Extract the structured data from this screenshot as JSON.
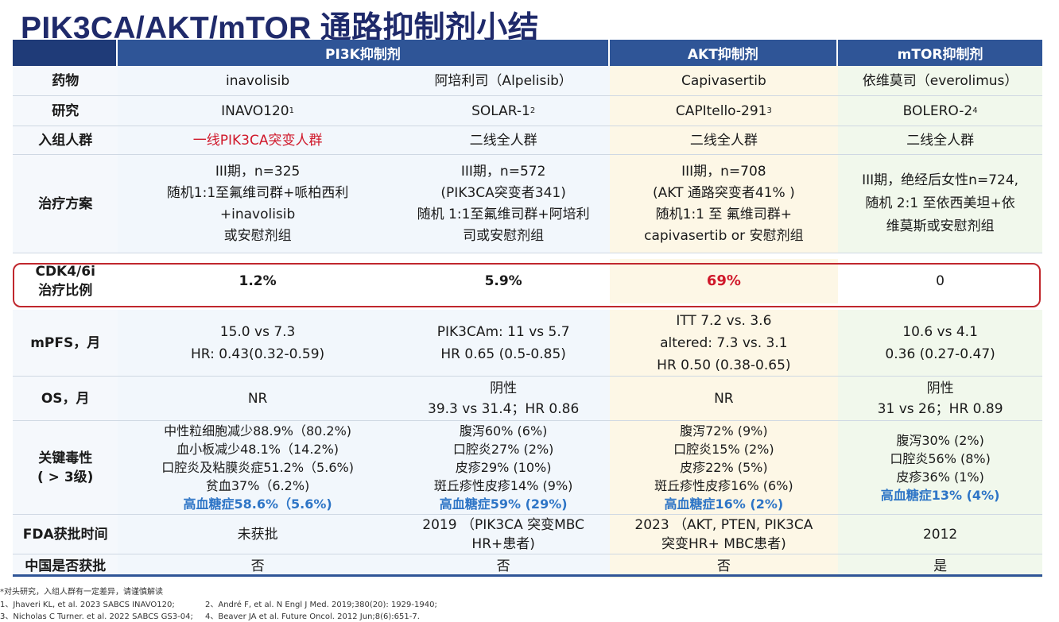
{
  "title": "PIK3CA/AKT/mTOR 通路抑制剂小结",
  "headers": {
    "label": "",
    "pi3k": "PI3K抑制剂",
    "akt": "AKT抑制剂",
    "mtor": "mTOR抑制剂"
  },
  "rows": {
    "drug": {
      "label": "药物",
      "v": [
        "inavolisib",
        "阿培利司（Alpelisib）",
        "Capivasertib",
        "依维莫司（everolimus）"
      ]
    },
    "study": {
      "label": "研究",
      "v": [
        "INAVO120",
        "SOLAR-1",
        "CAPItello-291",
        "BOLERO-2"
      ],
      "sup": [
        "1",
        "2",
        "3",
        "4"
      ]
    },
    "population": {
      "label": "入组人群",
      "v": [
        "一线PIK3CA突变人群",
        "二线全人群",
        "二线全人群",
        "二线全人群"
      ]
    },
    "regimen": {
      "label": "治疗方案",
      "v": [
        [
          "III期，n=325",
          "随机1:1至氟维司群+哌柏西利",
          "+inavolisib",
          "或安慰剂组"
        ],
        [
          "III期，n=572",
          "(PIK3CA突变者341)",
          "随机 1:1至氟维司群+阿培利",
          "司或安慰剂组"
        ],
        [
          "III期，n=708",
          "(AKT 通路突变者41% )",
          "随机1:1 至 氟维司群+",
          "capivasertib or 安慰剂组"
        ],
        [
          "III期，绝经后女性n=724,",
          "随机 2:1 至依西美坦+依",
          "维莫斯或安慰剂组"
        ]
      ]
    },
    "cdk": {
      "label1": "CDK4/6i",
      "label2": "治疗比例",
      "v": [
        "1.2%",
        "5.9%",
        "69%",
        "0"
      ]
    },
    "mpfs": {
      "label": "mPFS，月",
      "v": [
        [
          "15.0 vs 7.3",
          "HR: 0.43(0.32-0.59)"
        ],
        [
          "PIK3CAm: 11 vs 5.7",
          "HR 0.65 (0.5-0.85)"
        ],
        [
          "ITT 7.2 vs. 3.6",
          "altered: 7.3 vs. 3.1",
          "HR 0.50 (0.38-0.65)"
        ],
        [
          "10.6 vs 4.1",
          "0.36 (0.27-0.47)"
        ]
      ]
    },
    "os": {
      "label": "OS，月",
      "v": [
        [
          "NR"
        ],
        [
          "阴性",
          "39.3 vs 31.4；HR 0.86"
        ],
        [
          "NR"
        ],
        [
          "阴性",
          "31 vs 26；HR 0.89"
        ]
      ]
    },
    "tox": {
      "label1": "关键毒性",
      "label2": "( > 3级)",
      "v": [
        [
          "中性粒细胞减少88.9%（80.2%)",
          "血小板减少48.1%（14.2%)",
          "口腔炎及粘膜炎症51.2%（5.6%)",
          "贫血37%（6.2%)"
        ],
        [
          "腹泻60% (6%)",
          "口腔炎27% (2%)",
          "皮疹29% (10%)",
          "斑丘疹性皮疹14% (9%)"
        ],
        [
          "腹泻72% (9%)",
          "口腔炎15% (2%)",
          "皮疹22% (5%)",
          "斑丘疹性皮疹16% (6%)"
        ],
        [
          "腹泻30% (2%)",
          "口腔炎56% (8%)",
          "皮疹36% (1%)"
        ]
      ],
      "hl": [
        "高血糖症58.6%（5.6%)",
        "高血糖症59% (29%)",
        "高血糖症16% (2%)",
        "高血糖症13% (4%)"
      ]
    },
    "fda": {
      "label": "FDA获批时间",
      "v": [
        [
          "未获批"
        ],
        [
          "2019 （PIK3CA 突变MBC",
          "HR+患者)"
        ],
        [
          "2023 （AKT, PTEN, PIK3CA",
          "突变HR+ MBC患者)"
        ],
        [
          "2012"
        ]
      ]
    },
    "china": {
      "label": "中国是否获批",
      "v": [
        "否",
        "否",
        "否",
        "是"
      ]
    }
  },
  "footnotes": {
    "note0": "*对头研究，入组人群有一定差异，请谨慎解读",
    "ref1": "1、Jhaveri KL, et al. 2023 SABCS INAVO120;",
    "ref2": "2、André F, et al. N Engl J Med. 2019;380(20): 1929-1940;",
    "ref3": "3、Nicholas C Turner. et al. 2022 SABCS GS3-04;",
    "ref4": "4、Beaver JA et al. Future Oncol. 2012 Jun;8(6):651-7."
  }
}
